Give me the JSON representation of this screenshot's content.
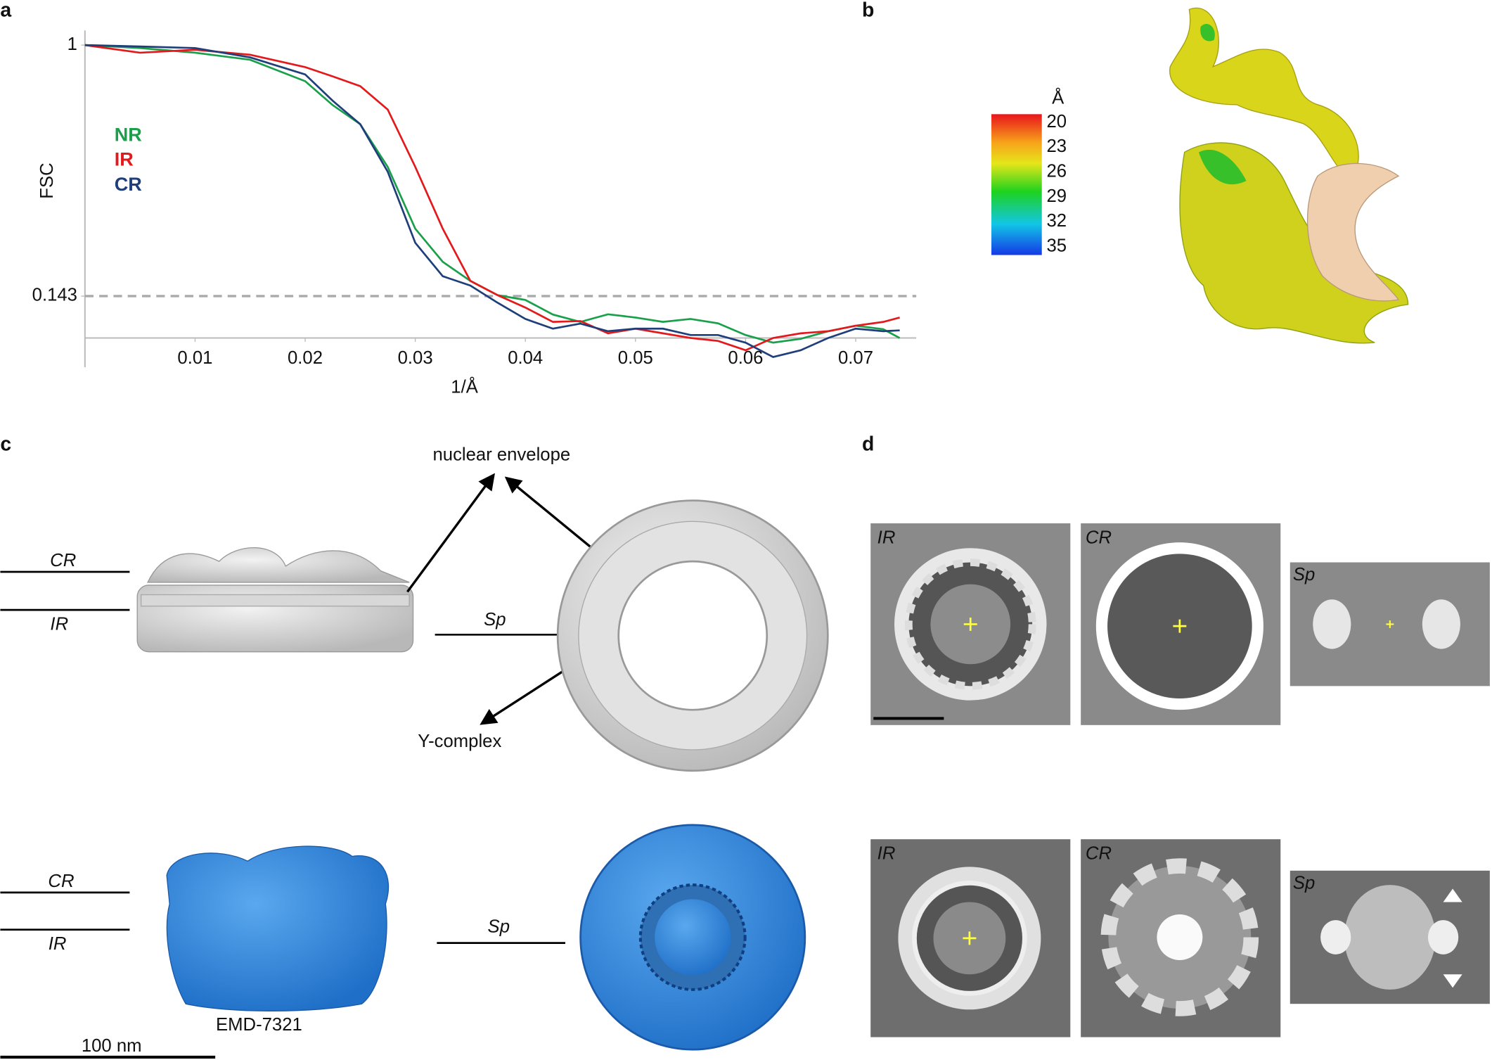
{
  "chart_data": {
    "type": "line",
    "x_label": "1/Å",
    "y_label": "FSC",
    "x": [
      0,
      0.005,
      0.01,
      0.015,
      0.02,
      0.0225,
      0.025,
      0.0275,
      0.03,
      0.0325,
      0.035,
      0.0375,
      0.04,
      0.0425,
      0.045,
      0.0475,
      0.05,
      0.0525,
      0.055,
      0.0575,
      0.06,
      0.0625,
      0.065,
      0.0675,
      0.07,
      0.0725,
      0.074
    ],
    "series": [
      {
        "name": "NR",
        "color": "#1aa04a",
        "values": [
          1,
          0.99,
          0.974,
          0.95,
          0.877,
          0.795,
          0.73,
          0.584,
          0.373,
          0.26,
          0.195,
          0.146,
          0.13,
          0.08,
          0.055,
          0.081,
          0.07,
          0.055,
          0.065,
          0.05,
          0.01,
          -0.016,
          -0.003,
          0.023,
          0.042,
          0.03,
          0
        ]
      },
      {
        "name": "IR",
        "color": "#e3191c",
        "values": [
          1,
          0.974,
          0.984,
          0.967,
          0.925,
          0.893,
          0.86,
          0.78,
          0.584,
          0.373,
          0.195,
          0.146,
          0.104,
          0.055,
          0.058,
          0.016,
          0.032,
          0.016,
          0,
          -0.01,
          -0.042,
          0,
          0.016,
          0.023,
          0.042,
          0.055,
          0.07
        ]
      },
      {
        "name": "CR",
        "color": "#1f3f7a",
        "values": [
          1,
          0.995,
          0.99,
          0.958,
          0.9,
          0.81,
          0.73,
          0.568,
          0.325,
          0.211,
          0.179,
          0.12,
          0.065,
          0.032,
          0.049,
          0.023,
          0.032,
          0.032,
          0.01,
          0.01,
          -0.016,
          -0.065,
          -0.042,
          0,
          0.032,
          0.023,
          0.026
        ]
      }
    ],
    "xlim": [
      0,
      0.0755
    ],
    "ylim": [
      -0.1,
      1.05
    ],
    "xticks": [
      0.01,
      0.02,
      0.03,
      0.04,
      0.05,
      0.06,
      0.07
    ],
    "yticks": [
      0.143,
      1
    ],
    "threshold": 0.143,
    "grid": false
  },
  "panel_labels": [
    "a",
    "b",
    "c",
    "d"
  ],
  "panel_b": {
    "colorbar": {
      "unit": "Å",
      "lim": [
        19,
        36
      ],
      "ticks": [
        20,
        23,
        26,
        29,
        32,
        35
      ]
    }
  },
  "panel_c": {
    "top": {
      "ring_labels": [
        "CR",
        "IR"
      ],
      "section_label": "Sp",
      "annotations": [
        "nuclear envelope",
        "Y-complex"
      ]
    },
    "bottom": {
      "ring_labels": [
        "CR",
        "IR"
      ],
      "section_label": "Sp",
      "map_id": "EMD-7321"
    },
    "scale_bar": "100 nm"
  },
  "panel_d": {
    "top": [
      "IR",
      "CR",
      "Sp"
    ],
    "bottom": [
      "IR",
      "CR",
      "Sp"
    ]
  }
}
